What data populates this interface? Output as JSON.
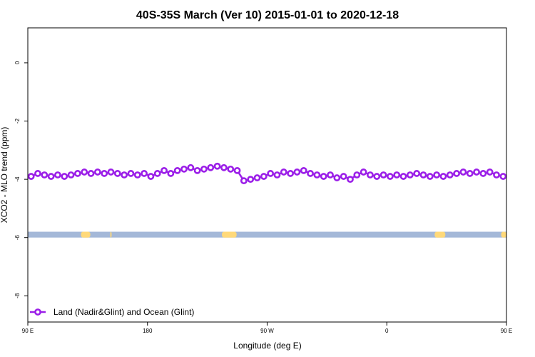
{
  "chart_data": {
    "type": "line",
    "title": "40S-35S March (Ver 10)   2015-01-01 to 2020-12-18",
    "xlabel": "Longitude (deg E)",
    "ylabel": "XCO2 - MLO trend (ppm)",
    "xlim": [
      0,
      360
    ],
    "ylim": [
      -8.9,
      1.2
    ],
    "x_ticks": [
      {
        "value": 0,
        "label": "90 E"
      },
      {
        "value": 90,
        "label": "180"
      },
      {
        "value": 180,
        "label": "90 W"
      },
      {
        "value": 270,
        "label": "0"
      },
      {
        "value": 360,
        "label": "90 E"
      },
      {
        "value": 450,
        "label": "180"
      }
    ],
    "x_ticks_shown": [
      {
        "value": 0,
        "label": "90 E"
      },
      {
        "value": 90,
        "label": "180"
      },
      {
        "value": 180,
        "label": "90 W"
      },
      {
        "value": 270,
        "label": "0"
      },
      {
        "value": 360,
        "label": "90 E"
      }
    ],
    "y_ticks": [
      0,
      -2,
      -4,
      -6,
      -8
    ],
    "grid": false,
    "legend_position": "bottom-left",
    "colors": {
      "series": "#9b1fe8",
      "ocean": "#a4b8d8",
      "land": "#ffd97a"
    },
    "map_strip": {
      "y_range": [
        -6.0,
        -5.8
      ],
      "land_segments": [
        [
          40,
          47
        ],
        [
          62,
          63
        ],
        [
          146,
          157
        ],
        [
          306,
          314
        ],
        [
          356,
          360
        ]
      ]
    },
    "series": [
      {
        "name": "Land (Nadir&Glint) and Ocean (Glint)",
        "x": [
          2.5,
          7.5,
          12.5,
          17.5,
          22.5,
          27.5,
          32.5,
          37.5,
          42.5,
          47.5,
          52.5,
          57.5,
          62.5,
          67.5,
          72.5,
          77.5,
          82.5,
          87.5,
          92.5,
          97.5,
          102.5,
          107.5,
          112.5,
          117.5,
          122.5,
          127.5,
          132.5,
          137.5,
          142.5,
          147.5,
          152.5,
          157.5,
          162.5,
          167.5,
          172.5,
          177.5,
          182.5,
          187.5,
          192.5,
          197.5,
          202.5,
          207.5,
          212.5,
          217.5,
          222.5,
          227.5,
          232.5,
          237.5,
          242.5,
          247.5,
          252.5,
          257.5,
          262.5,
          267.5,
          272.5,
          277.5,
          282.5,
          287.5,
          292.5,
          297.5,
          302.5,
          307.5,
          312.5,
          317.5,
          322.5,
          327.5,
          332.5,
          337.5,
          342.5,
          347.5,
          352.5,
          357.5
        ],
        "y": [
          -3.9,
          -3.8,
          -3.85,
          -3.9,
          -3.85,
          -3.9,
          -3.85,
          -3.8,
          -3.75,
          -3.8,
          -3.75,
          -3.8,
          -3.75,
          -3.8,
          -3.85,
          -3.8,
          -3.85,
          -3.8,
          -3.9,
          -3.8,
          -3.7,
          -3.8,
          -3.7,
          -3.65,
          -3.6,
          -3.7,
          -3.65,
          -3.6,
          -3.55,
          -3.6,
          -3.65,
          -3.7,
          -4.05,
          -4.0,
          -3.95,
          -3.9,
          -3.8,
          -3.85,
          -3.75,
          -3.8,
          -3.75,
          -3.7,
          -3.8,
          -3.85,
          -3.9,
          -3.85,
          -3.95,
          -3.9,
          -4.0,
          -3.85,
          -3.75,
          -3.85,
          -3.9,
          -3.85,
          -3.9,
          -3.85,
          -3.9,
          -3.85,
          -3.8,
          -3.85,
          -3.9,
          -3.85,
          -3.9,
          -3.85,
          -3.8,
          -3.75,
          -3.8,
          -3.75,
          -3.8,
          -3.75,
          -3.85,
          -3.9
        ]
      }
    ]
  }
}
